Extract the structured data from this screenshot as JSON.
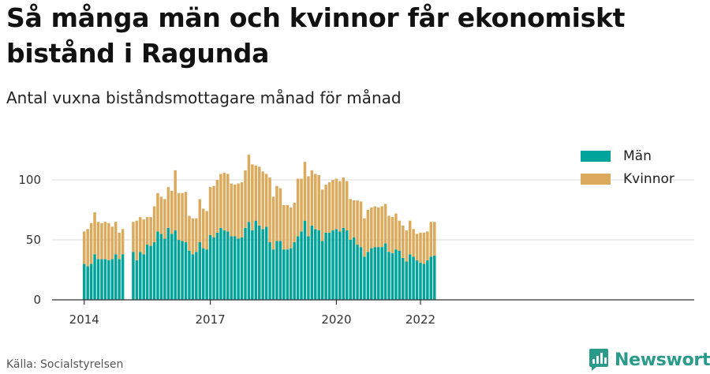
{
  "header": {
    "title": "Så många män och kvinnor får ekonomiskt bistånd i Ragunda",
    "subtitle": "Antal vuxna biståndsmottagare månad för månad"
  },
  "footer": {
    "source": "Källa: Socialstyrelsen",
    "brand": "Newsworthy"
  },
  "colors": {
    "men": "#00a49a",
    "women": "#dcaa5c",
    "grid": "#dddddd",
    "axis": "#333333"
  },
  "chart_data": {
    "type": "bar",
    "stacked": true,
    "x_tick_labels": [
      "2014",
      "2017",
      "2020",
      "2022"
    ],
    "y_tick_labels": [
      "0",
      "50",
      "100"
    ],
    "ylim": [
      0,
      125
    ],
    "grid": true,
    "legend_position": "top-right",
    "series": [
      {
        "name": "Män",
        "values": [
          [
            30,
            28,
            30,
            38,
            34,
            34,
            34,
            33,
            34,
            38,
            34,
            38,
            null,
            null,
            40,
            33,
            40,
            38,
            46,
            45,
            48,
            57,
            55,
            51,
            60,
            55,
            58,
            50,
            49,
            48,
            41,
            38,
            40,
            48,
            43,
            42,
            54,
            52,
            56,
            60,
            58,
            57,
            53,
            53,
            51,
            52,
            60,
            65,
            58,
            66,
            62,
            59,
            61,
            48,
            42,
            49,
            49,
            42,
            42,
            43,
            48,
            53,
            57,
            66,
            53,
            62,
            59,
            58,
            49,
            56,
            56,
            58,
            59,
            57,
            60,
            58,
            50,
            52,
            46,
            44,
            36,
            40,
            43,
            44,
            44,
            44,
            47,
            40,
            39,
            42,
            41,
            35,
            32,
            38,
            36,
            33,
            31,
            30,
            33,
            36,
            37
          ]
        ]
      },
      {
        "name": "Kvinnor",
        "values": [
          [
            27,
            31,
            34,
            35,
            31,
            30,
            31,
            31,
            27,
            27,
            22,
            21,
            null,
            null,
            25,
            33,
            29,
            29,
            23,
            24,
            30,
            32,
            31,
            33,
            34,
            36,
            50,
            39,
            40,
            42,
            29,
            30,
            28,
            36,
            33,
            32,
            40,
            43,
            44,
            45,
            48,
            48,
            44,
            43,
            46,
            46,
            48,
            56,
            55,
            46,
            49,
            48,
            44,
            54,
            44,
            46,
            44,
            37,
            37,
            34,
            33,
            48,
            44,
            49,
            50,
            46,
            46,
            46,
            43,
            40,
            42,
            42,
            42,
            42,
            42,
            41,
            34,
            31,
            37,
            38,
            32,
            35,
            34,
            34,
            33,
            34,
            33,
            30,
            30,
            30,
            25,
            27,
            26,
            28,
            23,
            22,
            25,
            26,
            24,
            29,
            28
          ]
        ]
      }
    ]
  }
}
